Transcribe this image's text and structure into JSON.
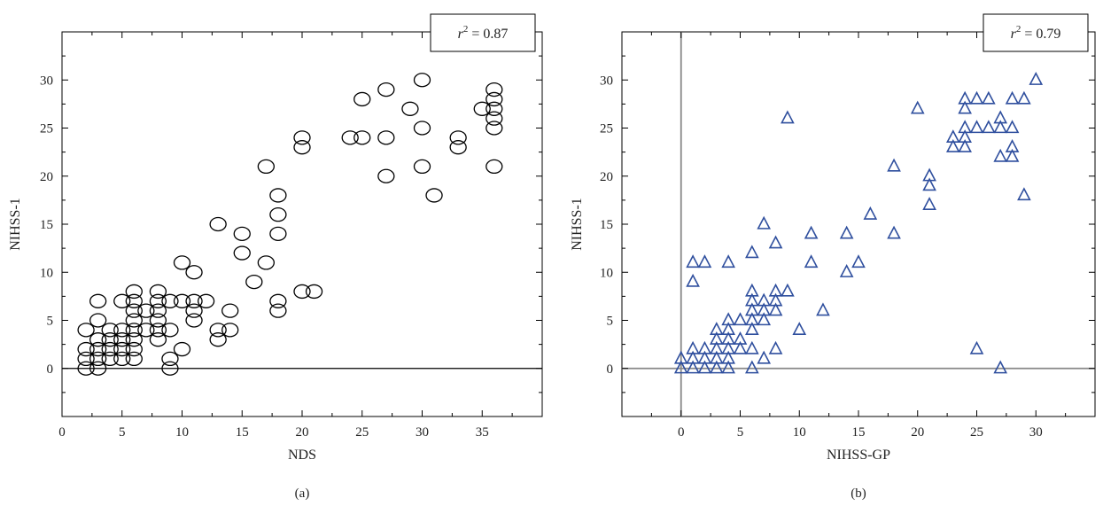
{
  "chart_data": [
    {
      "type": "scatter",
      "panel_label": "(a)",
      "xlabel": "NDS",
      "ylabel": "NIHSS-1",
      "xlim": [
        0,
        40
      ],
      "ylim": [
        -5,
        35
      ],
      "xticks": [
        "0",
        "5",
        "10",
        "15",
        "20",
        "25",
        "30",
        "35"
      ],
      "yticks": [
        "0",
        "5",
        "10",
        "15",
        "20",
        "25",
        "30"
      ],
      "annotation": {
        "prefix": "r",
        "sup": "2",
        "suffix": " = 0.87"
      },
      "marker": "circle",
      "marker_color": "#000000",
      "zero_lines": [
        "y"
      ],
      "points": [
        [
          2,
          0
        ],
        [
          2,
          1
        ],
        [
          2,
          2
        ],
        [
          2,
          4
        ],
        [
          3,
          0
        ],
        [
          3,
          1
        ],
        [
          3,
          2
        ],
        [
          3,
          3
        ],
        [
          3,
          5
        ],
        [
          3,
          7
        ],
        [
          4,
          1
        ],
        [
          4,
          2
        ],
        [
          4,
          3
        ],
        [
          4,
          4
        ],
        [
          5,
          1
        ],
        [
          5,
          2
        ],
        [
          5,
          3
        ],
        [
          5,
          4
        ],
        [
          5,
          7
        ],
        [
          6,
          1
        ],
        [
          6,
          2
        ],
        [
          6,
          3
        ],
        [
          6,
          4
        ],
        [
          6,
          5
        ],
        [
          6,
          6
        ],
        [
          6,
          7
        ],
        [
          6,
          8
        ],
        [
          7,
          4
        ],
        [
          7,
          6
        ],
        [
          8,
          3
        ],
        [
          8,
          4
        ],
        [
          8,
          5
        ],
        [
          8,
          6
        ],
        [
          8,
          7
        ],
        [
          8,
          8
        ],
        [
          9,
          0
        ],
        [
          9,
          1
        ],
        [
          9,
          4
        ],
        [
          9,
          7
        ],
        [
          10,
          2
        ],
        [
          10,
          7
        ],
        [
          10,
          11
        ],
        [
          11,
          5
        ],
        [
          11,
          6
        ],
        [
          11,
          7
        ],
        [
          11,
          10
        ],
        [
          12,
          7
        ],
        [
          13,
          3
        ],
        [
          13,
          4
        ],
        [
          13,
          15
        ],
        [
          14,
          4
        ],
        [
          14,
          6
        ],
        [
          15,
          12
        ],
        [
          15,
          14
        ],
        [
          16,
          9
        ],
        [
          17,
          11
        ],
        [
          17,
          21
        ],
        [
          18,
          6
        ],
        [
          18,
          7
        ],
        [
          18,
          14
        ],
        [
          18,
          16
        ],
        [
          18,
          18
        ],
        [
          20,
          8
        ],
        [
          20,
          23
        ],
        [
          20,
          24
        ],
        [
          21,
          8
        ],
        [
          24,
          24
        ],
        [
          25,
          24
        ],
        [
          25,
          28
        ],
        [
          27,
          20
        ],
        [
          27,
          24
        ],
        [
          27,
          29
        ],
        [
          29,
          27
        ],
        [
          30,
          21
        ],
        [
          30,
          25
        ],
        [
          30,
          30
        ],
        [
          31,
          18
        ],
        [
          33,
          23
        ],
        [
          33,
          24
        ],
        [
          35,
          27
        ],
        [
          36,
          21
        ],
        [
          36,
          25
        ],
        [
          36,
          26
        ],
        [
          36,
          27
        ],
        [
          36,
          28
        ],
        [
          36,
          29
        ]
      ]
    },
    {
      "type": "scatter",
      "panel_label": "(b)",
      "xlabel": "NIHSS-GP",
      "ylabel": "NIHSS-1",
      "xlim": [
        -5,
        35
      ],
      "ylim": [
        -5,
        35
      ],
      "xticks": [
        "0",
        "5",
        "10",
        "15",
        "20",
        "25",
        "30"
      ],
      "yticks": [
        "0",
        "5",
        "10",
        "15",
        "20",
        "25",
        "30"
      ],
      "annotation": {
        "prefix": "r",
        "sup": "2",
        "suffix": " = 0.79"
      },
      "marker": "triangle",
      "marker_color": "#2f4f9e",
      "zero_lines": [
        "x",
        "y"
      ],
      "points": [
        [
          0,
          0
        ],
        [
          0,
          1
        ],
        [
          1,
          0
        ],
        [
          1,
          1
        ],
        [
          1,
          2
        ],
        [
          1,
          9
        ],
        [
          1,
          11
        ],
        [
          2,
          0
        ],
        [
          2,
          1
        ],
        [
          2,
          2
        ],
        [
          2,
          11
        ],
        [
          3,
          0
        ],
        [
          3,
          1
        ],
        [
          3,
          2
        ],
        [
          3,
          3
        ],
        [
          3,
          4
        ],
        [
          4,
          0
        ],
        [
          4,
          1
        ],
        [
          4,
          2
        ],
        [
          4,
          3
        ],
        [
          4,
          4
        ],
        [
          4,
          5
        ],
        [
          4,
          11
        ],
        [
          5,
          2
        ],
        [
          5,
          3
        ],
        [
          5,
          5
        ],
        [
          6,
          0
        ],
        [
          6,
          2
        ],
        [
          6,
          4
        ],
        [
          6,
          5
        ],
        [
          6,
          6
        ],
        [
          6,
          7
        ],
        [
          6,
          8
        ],
        [
          6,
          12
        ],
        [
          7,
          1
        ],
        [
          7,
          5
        ],
        [
          7,
          6
        ],
        [
          7,
          7
        ],
        [
          7,
          15
        ],
        [
          8,
          2
        ],
        [
          8,
          6
        ],
        [
          8,
          7
        ],
        [
          8,
          8
        ],
        [
          8,
          13
        ],
        [
          9,
          8
        ],
        [
          9,
          26
        ],
        [
          10,
          4
        ],
        [
          11,
          11
        ],
        [
          11,
          14
        ],
        [
          12,
          6
        ],
        [
          14,
          10
        ],
        [
          14,
          14
        ],
        [
          15,
          11
        ],
        [
          16,
          16
        ],
        [
          18,
          14
        ],
        [
          18,
          21
        ],
        [
          20,
          27
        ],
        [
          21,
          17
        ],
        [
          21,
          19
        ],
        [
          21,
          20
        ],
        [
          23,
          23
        ],
        [
          23,
          24
        ],
        [
          24,
          23
        ],
        [
          24,
          24
        ],
        [
          24,
          25
        ],
        [
          24,
          27
        ],
        [
          24,
          28
        ],
        [
          25,
          2
        ],
        [
          25,
          25
        ],
        [
          25,
          28
        ],
        [
          26,
          25
        ],
        [
          26,
          28
        ],
        [
          27,
          0
        ],
        [
          27,
          22
        ],
        [
          27,
          25
        ],
        [
          27,
          26
        ],
        [
          28,
          22
        ],
        [
          28,
          23
        ],
        [
          28,
          25
        ],
        [
          28,
          28
        ],
        [
          29,
          18
        ],
        [
          29,
          28
        ],
        [
          30,
          30
        ]
      ]
    }
  ]
}
